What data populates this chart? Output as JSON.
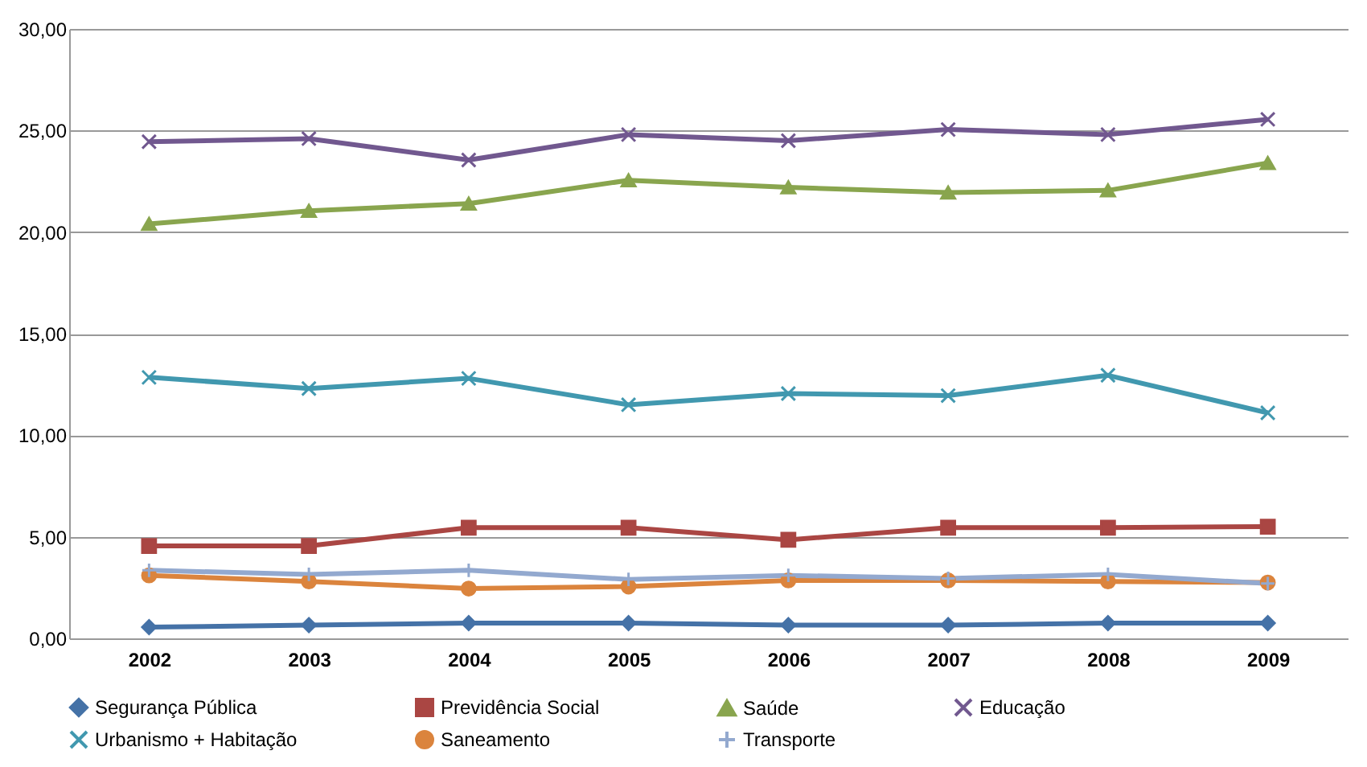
{
  "chart_data": {
    "type": "line",
    "categories": [
      "2002",
      "2003",
      "2004",
      "2005",
      "2006",
      "2007",
      "2008",
      "2009"
    ],
    "ylim": [
      0,
      30
    ],
    "yticks": [
      {
        "value": 0,
        "label": "0,00"
      },
      {
        "value": 5,
        "label": "5,00"
      },
      {
        "value": 10,
        "label": "10,00"
      },
      {
        "value": 15,
        "label": "15,00"
      },
      {
        "value": 20,
        "label": "20,00"
      },
      {
        "value": 25,
        "label": "25,00"
      },
      {
        "value": 30,
        "label": "30,00"
      }
    ],
    "grid": "y",
    "legend": "bottom",
    "line_style": "solid",
    "series": [
      {
        "name": "Segurança Pública",
        "color": "#4572a7",
        "marker": "diamond",
        "values": [
          0.55,
          0.65,
          0.75,
          0.75,
          0.65,
          0.65,
          0.75,
          0.75
        ]
      },
      {
        "name": "Previdência Social",
        "color": "#aa4643",
        "marker": "square",
        "values": [
          4.55,
          4.55,
          5.45,
          5.45,
          4.85,
          5.45,
          5.45,
          5.5
        ]
      },
      {
        "name": "Saúde",
        "color": "#89a54e",
        "marker": "triangle",
        "values": [
          20.4,
          21.05,
          21.4,
          22.55,
          22.2,
          21.95,
          22.05,
          23.4
        ]
      },
      {
        "name": "Educação",
        "color": "#71588f",
        "marker": "cross",
        "values": [
          24.45,
          24.6,
          23.55,
          24.8,
          24.5,
          25.05,
          24.8,
          25.55
        ]
      },
      {
        "name": "Urbanismo + Habitação",
        "color": "#4198af",
        "marker": "cross",
        "values": [
          12.85,
          12.3,
          12.8,
          11.5,
          12.05,
          11.95,
          12.95,
          11.1
        ]
      },
      {
        "name": "Saneamento",
        "color": "#db843d",
        "marker": "circle",
        "values": [
          3.1,
          2.8,
          2.45,
          2.55,
          2.85,
          2.85,
          2.8,
          2.75
        ]
      },
      {
        "name": "Transporte",
        "color": "#93a9cf",
        "marker": "plus",
        "values": [
          3.35,
          3.15,
          3.35,
          2.9,
          3.1,
          2.95,
          3.15,
          2.7
        ]
      }
    ]
  }
}
